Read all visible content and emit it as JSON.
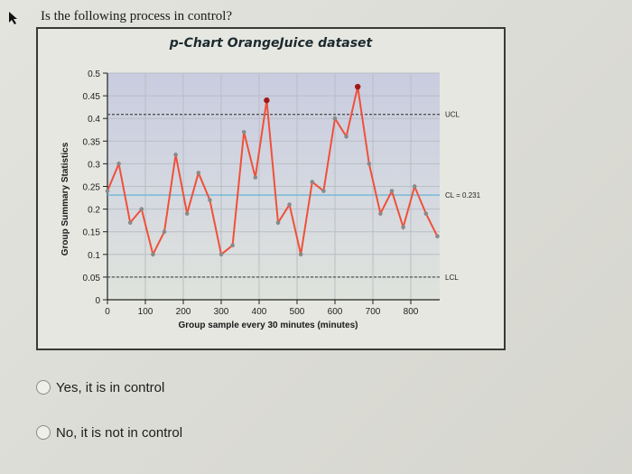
{
  "question": "Is the following process in control?",
  "chart_data": {
    "type": "line",
    "title": "p-Chart OrangeJuice dataset",
    "xlabel": "Group sample every 30 minutes (minutes)",
    "ylabel": "Group Summary Statistics",
    "x_ticks": [
      0,
      100,
      200,
      300,
      400,
      500,
      600,
      700,
      800
    ],
    "y_ticks": [
      0,
      0.05,
      0.1,
      0.15,
      0.2,
      0.25,
      0.3,
      0.35,
      0.4,
      0.45,
      0.5
    ],
    "ylim": [
      0,
      0.5
    ],
    "xlim": [
      0,
      876
    ],
    "grid": true,
    "x": [
      0,
      30,
      60,
      90,
      120,
      150,
      180,
      210,
      240,
      270,
      300,
      330,
      360,
      390,
      420,
      450,
      480,
      510,
      540,
      570,
      600,
      630,
      660,
      690,
      720,
      750,
      780,
      810,
      840,
      870
    ],
    "values": [
      0.24,
      0.3,
      0.17,
      0.2,
      0.1,
      0.15,
      0.32,
      0.19,
      0.28,
      0.22,
      0.1,
      0.12,
      0.37,
      0.27,
      0.44,
      0.17,
      0.21,
      0.1,
      0.26,
      0.24,
      0.4,
      0.36,
      0.47,
      0.3,
      0.19,
      0.24,
      0.16,
      0.25,
      0.19,
      0.14
    ],
    "out_of_control_points": [
      {
        "x": 420,
        "value": 0.44
      },
      {
        "x": 660,
        "value": 0.47
      }
    ],
    "control_limits": {
      "UCL": 0.409,
      "CL": 0.231,
      "LCL": 0.05
    },
    "annotations": [
      "UCL",
      "CL = 0.231",
      "LCL"
    ],
    "colors": {
      "line": "#f0503a",
      "point": "#8a8a8a",
      "out_of_control_point": "#a01818",
      "cl_line": "#6fb6d8",
      "limit_lines": "#555555",
      "plot_bg_top": "#c9ccdf",
      "plot_bg_bottom": "#dfe3dc"
    }
  },
  "options": [
    {
      "label": "Yes, it is in control",
      "selected": false
    },
    {
      "label": "No, it is not in control",
      "selected": false
    }
  ]
}
